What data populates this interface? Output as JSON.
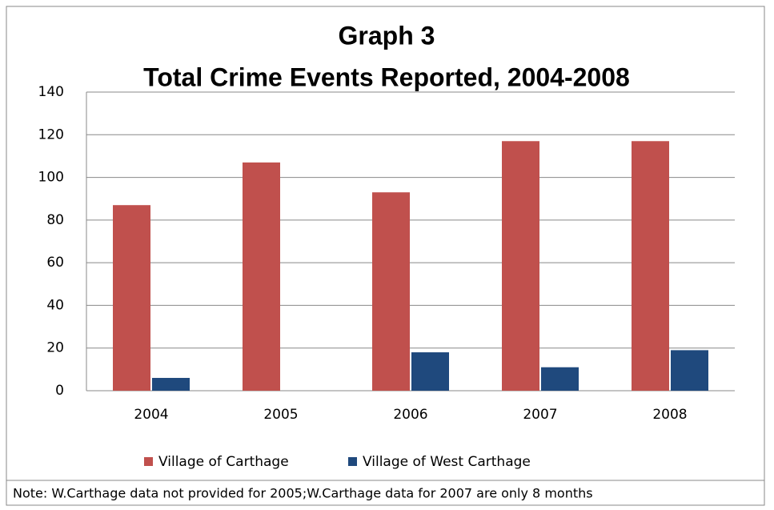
{
  "chart_data": {
    "type": "bar",
    "title": "Graph 3",
    "subtitle": "Total Crime Events Reported, 2004-2008",
    "categories": [
      "2004",
      "2005",
      "2006",
      "2007",
      "2008"
    ],
    "series": [
      {
        "name": "Village of Carthage",
        "color": "#c0504d",
        "values": [
          87,
          107,
          93,
          117,
          117
        ]
      },
      {
        "name": "Village of West Carthage",
        "color": "#1f497d",
        "values": [
          6,
          null,
          18,
          11,
          19
        ]
      }
    ],
    "ylim": [
      0,
      140
    ],
    "yticks": [
      0,
      20,
      40,
      60,
      80,
      100,
      120,
      140
    ],
    "grid": true,
    "legend": "bottom",
    "note": "Note: W.Carthage data not provided for 2005;W.Carthage data for 2007 are only 8 months"
  }
}
